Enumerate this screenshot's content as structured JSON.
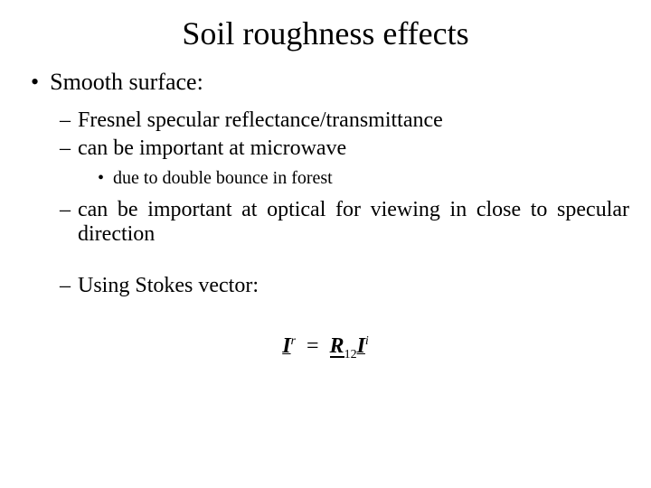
{
  "title": "Soil roughness effects",
  "level1": {
    "text": "Smooth surface:"
  },
  "level2_items": {
    "item1": "Fresnel specular reflectance/transmittance",
    "item2": "can be important at microwave",
    "item3": "can be important at optical for viewing in close to specular direction",
    "item4": "Using Stokes vector:"
  },
  "level3": {
    "item1": "due to double bounce in forest"
  },
  "formula": {
    "left_var": "I",
    "left_sup": "r",
    "matrix": "R",
    "matrix_sub": "12",
    "right_var": "I",
    "right_sup": "i"
  },
  "colors": {
    "background": "#ffffff",
    "text": "#000000"
  },
  "typography": {
    "font_family": "Times New Roman",
    "title_size": 36,
    "level1_size": 26,
    "level2_size": 24,
    "level3_size": 20
  }
}
